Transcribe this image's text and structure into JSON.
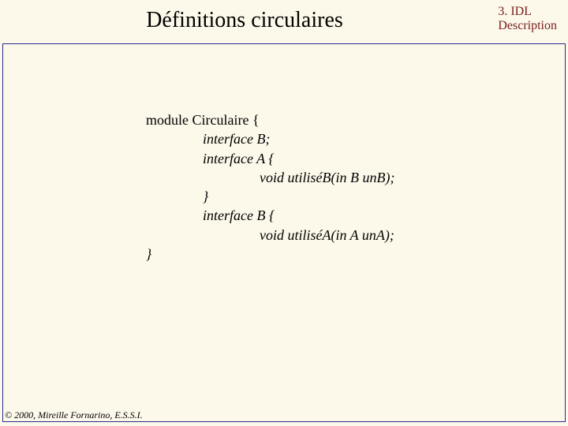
{
  "header": {
    "chapter": "3. IDL",
    "description": "Description",
    "color": "#7a2020",
    "fontsize": 16
  },
  "title": {
    "text": "Définitions circulaires",
    "fontsize": 28,
    "color": "#000000"
  },
  "frame": {
    "border_color": "#2a2a90",
    "border_width": 1
  },
  "code": {
    "fontsize": 18,
    "color": "#000000",
    "lines": [
      {
        "indent": 0,
        "text": "module Circulaire {",
        "italic": false
      },
      {
        "indent": 2,
        "text": "interface B;",
        "italic": true
      },
      {
        "indent": 2,
        "text": "interface A {",
        "italic": true
      },
      {
        "indent": 4,
        "text": "void utiliséB(in B unB);",
        "italic": true
      },
      {
        "indent": 2,
        "text": "}",
        "italic": true
      },
      {
        "indent": 2,
        "text": "interface B {",
        "italic": true
      },
      {
        "indent": 4,
        "text": "void utiliséA(in A unA);",
        "italic": true
      },
      {
        "indent": 0,
        "text": "}",
        "italic": true
      }
    ]
  },
  "footer": {
    "text": "© 2000, Mireille Fornarino, E.S.S.I.",
    "fontsize": 12,
    "color": "#000000"
  },
  "background_color": "#fcf8ea"
}
